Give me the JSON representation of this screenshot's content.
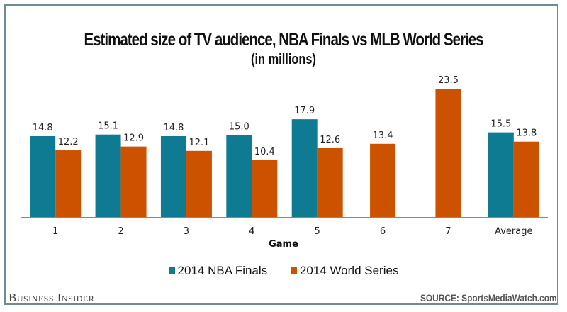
{
  "chart_data": {
    "type": "bar",
    "title": "Estimated size of TV audience, NBA Finals vs MLB World Series",
    "subtitle": "(in millions)",
    "xlabel": "Game",
    "ylabel": "",
    "categories": [
      "1",
      "2",
      "3",
      "4",
      "5",
      "6",
      "7",
      "Average"
    ],
    "series": [
      {
        "name": "2014 NBA Finals",
        "color": "#0e7b93",
        "values": [
          14.8,
          15.1,
          14.8,
          15.0,
          17.9,
          null,
          null,
          15.5
        ],
        "labels": [
          "14.8",
          "15.1",
          "14.8",
          "15.0",
          "17.9",
          null,
          null,
          "15.5"
        ]
      },
      {
        "name": "2014 World Series",
        "color": "#cc5200",
        "values": [
          12.2,
          12.9,
          12.1,
          10.4,
          12.6,
          13.4,
          23.5,
          13.8
        ],
        "labels": [
          "12.2",
          "12.9",
          "12.1",
          "10.4",
          "12.6",
          "13.4",
          "23.5",
          "13.8"
        ]
      }
    ],
    "ylim": [
      0,
      25
    ],
    "grid": false,
    "legend": "bottom-center"
  },
  "footer": {
    "brand": "Business Insider",
    "source": "SOURCE: SportsMediaWatch.com"
  }
}
